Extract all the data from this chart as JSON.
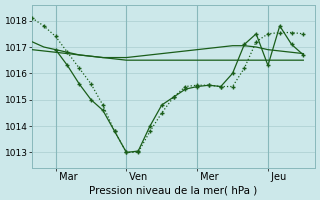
{
  "background_color": "#cce8ea",
  "grid_color": "#aacdd0",
  "line_color": "#1a5e1a",
  "title": "Pression niveau de la mer( hPa )",
  "ylim": [
    1012.4,
    1018.6
  ],
  "yticks": [
    1013,
    1014,
    1015,
    1016,
    1017,
    1018
  ],
  "xtick_labels": [
    " Mar",
    " Ven",
    " Mer",
    " Jeu"
  ],
  "xtick_positions": [
    8,
    32,
    56,
    80
  ],
  "xlim": [
    0,
    96
  ],
  "vline_positions": [
    8,
    32,
    56,
    80
  ],
  "s1_x": [
    0,
    4,
    8,
    12,
    16,
    20,
    24,
    28,
    32,
    36,
    40,
    44,
    48,
    52,
    56,
    60,
    64,
    68,
    72,
    76,
    80,
    84,
    88,
    92
  ],
  "s1_y": [
    1017.2,
    1017.0,
    1016.9,
    1016.8,
    1016.7,
    1016.65,
    1016.6,
    1016.6,
    1016.6,
    1016.65,
    1016.7,
    1016.75,
    1016.8,
    1016.85,
    1016.9,
    1016.95,
    1017.0,
    1017.05,
    1017.05,
    1017.0,
    1016.9,
    1016.85,
    1016.8,
    1016.75
  ],
  "s2_x": [
    0,
    4,
    8,
    12,
    16,
    20,
    24,
    28,
    32,
    36,
    40,
    44,
    48,
    52,
    56,
    60,
    64,
    68,
    72,
    76,
    80,
    84,
    88,
    92
  ],
  "s2_y": [
    1016.9,
    1016.85,
    1016.8,
    1016.75,
    1016.7,
    1016.65,
    1016.6,
    1016.55,
    1016.5,
    1016.5,
    1016.5,
    1016.5,
    1016.5,
    1016.5,
    1016.5,
    1016.5,
    1016.5,
    1016.5,
    1016.5,
    1016.5,
    1016.5,
    1016.5,
    1016.5,
    1016.5
  ],
  "s3_x": [
    0,
    4,
    8,
    12,
    16,
    20,
    24,
    28,
    32,
    36,
    40,
    44,
    48,
    52,
    56,
    60,
    64,
    68,
    72,
    76,
    80,
    84,
    88,
    92
  ],
  "s3_y": [
    1018.1,
    1017.8,
    1017.4,
    1016.8,
    1016.2,
    1015.6,
    1014.8,
    1013.8,
    1013.0,
    1013.0,
    1013.8,
    1014.5,
    1015.1,
    1015.5,
    1015.55,
    1015.55,
    1015.5,
    1015.5,
    1016.2,
    1017.2,
    1017.5,
    1017.55,
    1017.55,
    1017.5
  ],
  "s4_x": [
    8,
    12,
    16,
    20,
    24,
    28,
    32,
    36,
    40,
    44,
    48,
    52,
    56,
    60,
    64,
    68,
    72,
    76,
    80,
    84,
    88,
    92
  ],
  "s4_y": [
    1016.9,
    1016.3,
    1015.6,
    1015.0,
    1014.6,
    1013.8,
    1013.0,
    1013.05,
    1014.0,
    1014.8,
    1015.1,
    1015.4,
    1015.5,
    1015.55,
    1015.5,
    1016.0,
    1017.1,
    1017.5,
    1016.3,
    1017.8,
    1017.1,
    1016.7
  ]
}
